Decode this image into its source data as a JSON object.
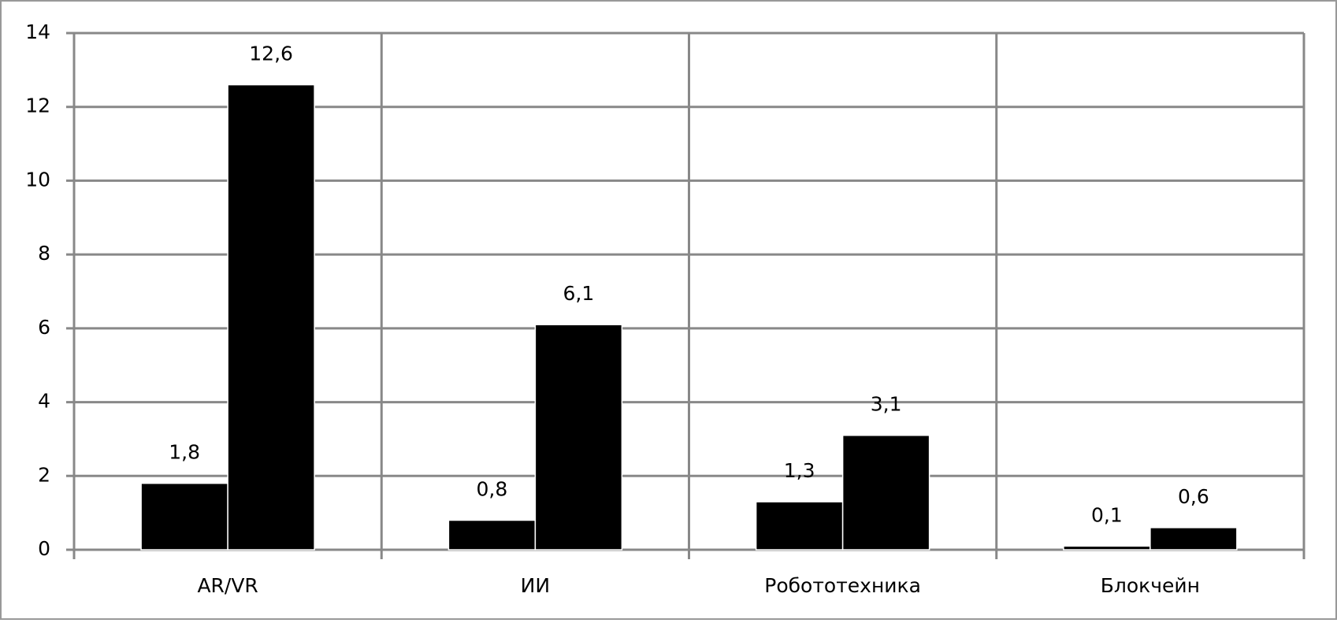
{
  "chart_data": {
    "type": "bar",
    "categories": [
      "AR/VR",
      "ИИ",
      "Робототехника",
      "Блокчейн"
    ],
    "series": [
      {
        "color": "#000000",
        "values": [
          1.8,
          0.8,
          1.3,
          0.1
        ],
        "value_labels": [
          "1,8",
          "0,8",
          "1,3",
          "0,1"
        ]
      },
      {
        "color": "#000000",
        "values": [
          12.6,
          6.1,
          3.1,
          0.6
        ],
        "value_labels": [
          "12,6",
          "6,1",
          "3,1",
          "0,6"
        ]
      }
    ],
    "ylim": [
      0,
      14
    ],
    "yticks": [
      0,
      2,
      4,
      6,
      8,
      10,
      12,
      14
    ],
    "grid": true
  }
}
